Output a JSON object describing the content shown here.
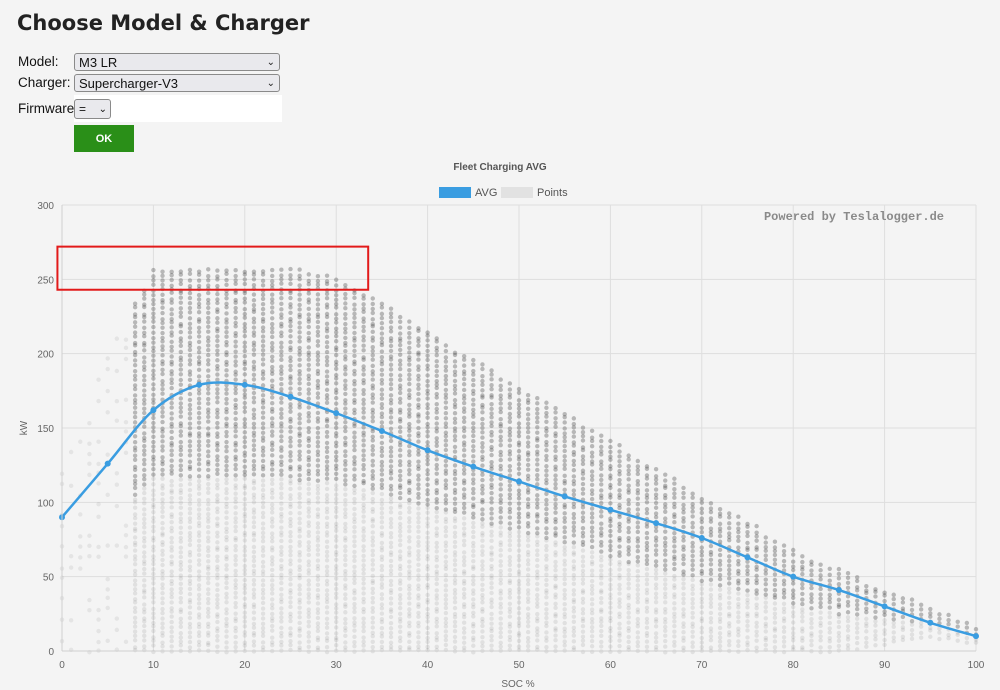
{
  "page": {
    "title": "Choose Model & Charger"
  },
  "form": {
    "model": {
      "label": "Model:",
      "value": "M3 LR"
    },
    "charger": {
      "label": "Charger:",
      "value": "Supercharger-V3"
    },
    "firmware": {
      "label": "Firmware:",
      "value": "="
    },
    "ok_label": "OK"
  },
  "icons": {
    "dropdown": "chevron-down-icon"
  },
  "colors": {
    "avg": "#3a9de1",
    "points": "#555555",
    "ok_button": "#2a8f18",
    "highlight_box": "#e21a1a"
  },
  "chart_data": {
    "type": "scatter",
    "title": "Fleet Charging AVG",
    "xlabel": "SOC %",
    "ylabel": "kW",
    "watermark": "Powered by Teslalogger.de",
    "xlim": [
      0,
      100
    ],
    "ylim": [
      0,
      300
    ],
    "x_ticks": [
      0,
      10,
      20,
      30,
      40,
      50,
      60,
      70,
      80,
      90,
      100
    ],
    "y_ticks": [
      0,
      50,
      100,
      150,
      200,
      250,
      300
    ],
    "grid": true,
    "legend": {
      "position": "top",
      "entries": [
        "AVG",
        "Points"
      ]
    },
    "highlight": {
      "x_range": [
        -0.5,
        33.5
      ],
      "y_range": [
        243,
        272
      ]
    },
    "series": [
      {
        "name": "AVG",
        "type": "line",
        "x": [
          0,
          5,
          10,
          15,
          20,
          25,
          30,
          35,
          40,
          45,
          50,
          55,
          60,
          65,
          70,
          75,
          80,
          85,
          90,
          95,
          100
        ],
        "values": [
          90,
          126,
          162,
          179,
          179,
          171,
          160,
          148,
          135,
          124,
          114,
          104,
          95,
          86,
          76,
          63,
          50,
          41,
          30,
          19,
          10
        ]
      },
      {
        "name": "Points",
        "type": "scatter",
        "envelope_x": [
          0,
          5,
          10,
          15,
          20,
          25,
          30,
          35,
          40,
          45,
          50,
          55,
          60,
          65,
          70,
          75,
          80,
          85,
          90,
          95,
          100
        ],
        "envelope_max": [
          120,
          200,
          257,
          258,
          258,
          257,
          252,
          235,
          215,
          196,
          178,
          161,
          142,
          123,
          104,
          88,
          68,
          55,
          43,
          30,
          17
        ],
        "envelope_min": [
          0,
          0,
          0,
          0,
          0,
          0,
          0,
          0,
          0,
          0,
          0,
          0,
          0,
          0,
          0,
          0,
          0,
          0,
          5,
          10,
          5
        ]
      }
    ]
  }
}
